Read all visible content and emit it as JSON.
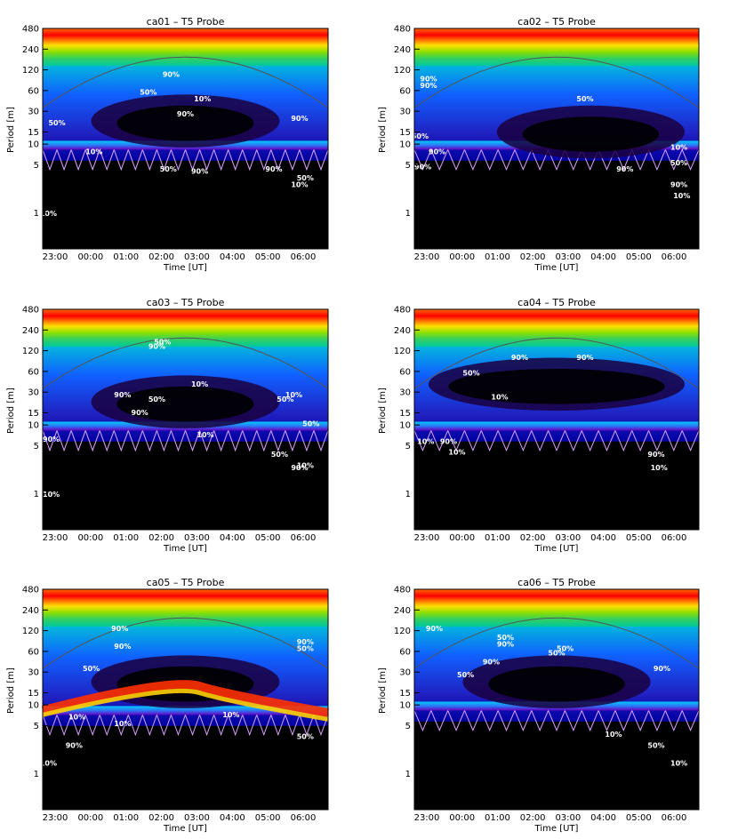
{
  "page": {
    "xlabel": "Time [UT]",
    "ylabel": "Period [m]"
  },
  "chart_data": [
    {
      "type": "heatmap",
      "title": "ca01 – T5 Probe",
      "xlabel": "Time [UT]",
      "ylabel": "Period [m]",
      "x_ticks": [
        "23:00",
        "00:00",
        "01:00",
        "02:00",
        "03:00",
        "04:00",
        "05:00",
        "06:00"
      ],
      "y_ticks": [
        480,
        240,
        120,
        60,
        30,
        15,
        10,
        5,
        1
      ],
      "y_scale": "log",
      "ylim": [
        0.3,
        480
      ],
      "annotations": [
        "90%",
        "50%",
        "10%",
        "90%",
        "90%",
        "50%",
        "10%",
        "50%",
        "90%",
        "90%",
        "10%",
        "50%",
        "10%"
      ]
    },
    {
      "type": "heatmap",
      "title": "ca02 – T5 Probe",
      "xlabel": "Time [UT]",
      "ylabel": "Period [m]",
      "x_ticks": [
        "23:00",
        "00:00",
        "01:00",
        "02:00",
        "03:00",
        "04:00",
        "05:00",
        "06:00"
      ],
      "y_ticks": [
        480,
        240,
        120,
        60,
        30,
        15,
        10,
        5,
        1
      ],
      "y_scale": "log",
      "ylim": [
        0.3,
        480
      ],
      "annotations": [
        "90%",
        "90%",
        "50%",
        "50%",
        "90%",
        "10%",
        "90%",
        "50%",
        "90%",
        "10%",
        "90%"
      ]
    },
    {
      "type": "heatmap",
      "title": "ca03 – T5 Probe",
      "xlabel": "Time [UT]",
      "ylabel": "Period [m]",
      "x_ticks": [
        "23:00",
        "00:00",
        "01:00",
        "02:00",
        "03:00",
        "04:00",
        "05:00",
        "06:00"
      ],
      "y_ticks": [
        480,
        240,
        120,
        60,
        30,
        15,
        10,
        5,
        1
      ],
      "y_scale": "log",
      "ylim": [
        0.3,
        480
      ],
      "annotations": [
        "90%",
        "50%",
        "90%",
        "50%",
        "90%",
        "10%",
        "50%",
        "10%",
        "50%",
        "90%",
        "10%",
        "50%",
        "90%",
        "10%",
        "10%"
      ]
    },
    {
      "type": "heatmap",
      "title": "ca04 – T5 Probe",
      "xlabel": "Time [UT]",
      "ylabel": "Period [m]",
      "x_ticks": [
        "23:00",
        "00:00",
        "01:00",
        "02:00",
        "03:00",
        "04:00",
        "05:00",
        "06:00"
      ],
      "y_ticks": [
        480,
        240,
        120,
        60,
        30,
        15,
        10,
        5,
        1
      ],
      "y_scale": "log",
      "ylim": [
        0.3,
        480
      ],
      "annotations": [
        "90%",
        "90%",
        "50%",
        "10%",
        "10%",
        "90%",
        "10%",
        "90%",
        "10%"
      ]
    },
    {
      "type": "heatmap",
      "title": "ca05 – T5 Probe",
      "xlabel": "Time [UT]",
      "ylabel": "Period [m]",
      "x_ticks": [
        "23:00",
        "00:00",
        "01:00",
        "02:00",
        "03:00",
        "04:00",
        "05:00",
        "06:00"
      ],
      "y_ticks": [
        480,
        240,
        120,
        60,
        30,
        15,
        10,
        5,
        1
      ],
      "y_scale": "log",
      "ylim": [
        0.3,
        480
      ],
      "annotations": [
        "90%",
        "90%",
        "90%",
        "50%",
        "50%",
        "10%",
        "10%",
        "10%",
        "50%",
        "90%",
        "10%"
      ]
    },
    {
      "type": "heatmap",
      "title": "ca06 – T5 Probe",
      "xlabel": "Time [UT]",
      "ylabel": "Period [m]",
      "x_ticks": [
        "23:00",
        "00:00",
        "01:00",
        "02:00",
        "03:00",
        "04:00",
        "05:00",
        "06:00"
      ],
      "y_ticks": [
        480,
        240,
        120,
        60,
        30,
        15,
        10,
        5,
        1
      ],
      "y_scale": "log",
      "ylim": [
        0.3,
        480
      ],
      "annotations": [
        "90%",
        "50%",
        "90%",
        "50%",
        "50%",
        "90%",
        "50%",
        "90%",
        "10%",
        "50%",
        "10%"
      ]
    }
  ]
}
